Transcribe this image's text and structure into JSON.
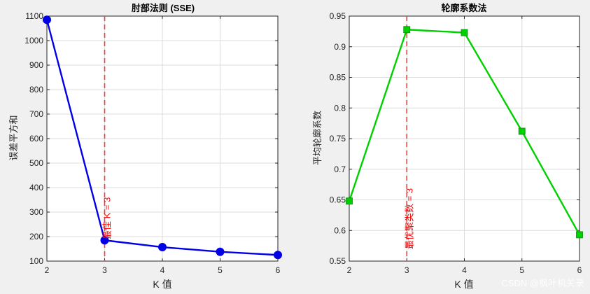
{
  "chart_data": [
    {
      "type": "line",
      "title": "肘部法则 (SSE)",
      "xlabel": "K 值",
      "ylabel": "误差平方和",
      "x": [
        2,
        3,
        4,
        5,
        6
      ],
      "xlim": [
        2,
        6
      ],
      "ylim": [
        100,
        1100
      ],
      "xticks": [
        2,
        3,
        4,
        5,
        6
      ],
      "yticks": [
        100,
        200,
        300,
        400,
        500,
        600,
        700,
        800,
        900,
        1000,
        1100
      ],
      "series": [
        {
          "values": [
            1085,
            185,
            157,
            138,
            125
          ],
          "color": "#0000e6",
          "marker": "circle"
        }
      ],
      "vline": {
        "x": 3,
        "color": "#ff3333",
        "style": "dashed",
        "label": "最佳 K = 3"
      },
      "grid": true
    },
    {
      "type": "line",
      "title": "轮廓系数法",
      "xlabel": "K 值",
      "ylabel": "平均轮廓系数",
      "x": [
        2,
        3,
        4,
        5,
        6
      ],
      "xlim": [
        2,
        6
      ],
      "ylim": [
        0.55,
        0.95
      ],
      "xticks": [
        2,
        3,
        4,
        5,
        6
      ],
      "yticks": [
        0.55,
        0.6,
        0.65,
        0.7,
        0.75,
        0.8,
        0.85,
        0.9,
        0.95
      ],
      "series": [
        {
          "values": [
            0.648,
            0.928,
            0.923,
            0.762,
            0.593
          ],
          "color": "#00d000",
          "marker": "square"
        }
      ],
      "vline": {
        "x": 3,
        "color": "#ff3333",
        "style": "dashed",
        "label": "最优聚类数 = 3"
      },
      "grid": true
    }
  ],
  "watermark": "CSDN @枫叶机关录"
}
